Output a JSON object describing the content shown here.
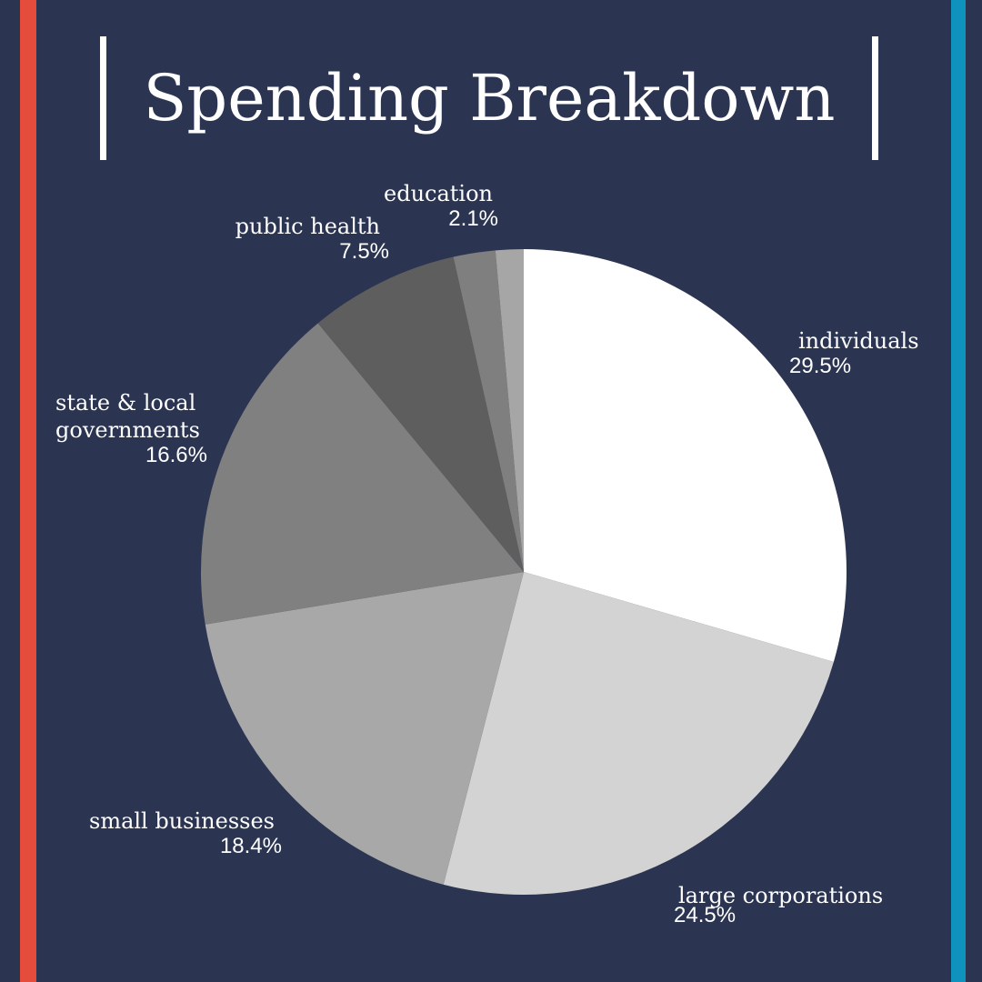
{
  "title": "Spending Breakdown",
  "colors": {
    "background": "#2b3552",
    "accent_left": "#e64c3c",
    "accent_right": "#0f93be",
    "text": "#ffffff"
  },
  "chart_data": {
    "type": "pie",
    "title": "Spending Breakdown",
    "slices": [
      {
        "label": "individuals",
        "value": 29.5,
        "display": "29.5%",
        "color": "#ffffff"
      },
      {
        "label": "large corporations",
        "value": 24.5,
        "display": "24.5%",
        "color": "#d3d3d3"
      },
      {
        "label": "small businesses",
        "value": 18.4,
        "display": "18.4%",
        "color": "#a8a8a8"
      },
      {
        "label": "state & local governments",
        "value": 16.6,
        "display": "16.6%",
        "color": "#808080"
      },
      {
        "label": "public health",
        "value": 7.5,
        "display": "7.5%",
        "color": "#5e5e5e"
      },
      {
        "label": "education",
        "value": 2.1,
        "display": "2.1%",
        "color": "#7f7f7f"
      },
      {
        "label": "",
        "value": 1.4,
        "display": "",
        "color": "#a6a6a6"
      }
    ]
  }
}
